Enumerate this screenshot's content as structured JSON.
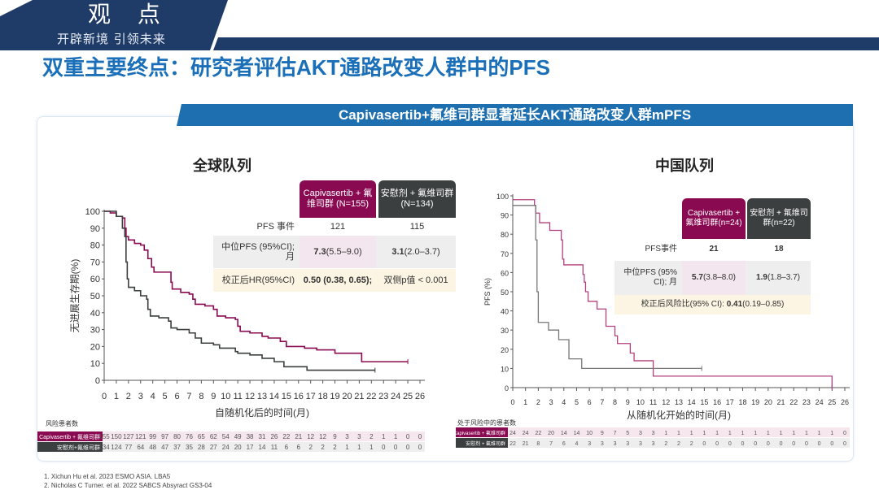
{
  "header": {
    "title": "观 点",
    "slogan": "开辟新境 引领未来"
  },
  "page_title": "双重主要终点：研究者评估AKT通路改变人群中的PFS",
  "banner": "Capivasertib+氟维司群显著延长AKT通路改变人群mPFS",
  "colors": {
    "capi": "#8a0a52",
    "placebo": "#3b3f3f",
    "china_capi": "#b3407e",
    "china_placebo": "#777777",
    "title": "#1a6fb8",
    "banner": "#1e6fb0"
  },
  "global": {
    "subtitle": "全球队列",
    "table": {
      "col1": "Capivasertib + 氟维司群 (N=155)",
      "col2": "安慰剂 + 氟维司群 (N=134)",
      "row1_label": "PFS 事件",
      "row1_v1": "121",
      "row1_v2": "115",
      "row2_label": "中位PFS (95%CI); 月",
      "row2_v1_bold": "7.3",
      "row2_v1": " (5.5–9.0)",
      "row2_v2_bold": "3.1",
      "row2_v2": " (2.0–3.7)",
      "row3_label": "校正后HR(95%CI)",
      "row3_v1": "0.50 (0.38, 0.65);",
      "row3_v2": "双侧p值 < 0.001"
    },
    "risk": {
      "title": "风险患者数",
      "label1": "Capivasertib + 氟维司群",
      "label2": "安慰剂+氟维司群",
      "capi": [
        155,
        150,
        127,
        121,
        99,
        97,
        80,
        76,
        65,
        62,
        54,
        49,
        38,
        31,
        26,
        22,
        21,
        12,
        12,
        9,
        3,
        3,
        2,
        1,
        1,
        0,
        0
      ],
      "placebo": [
        134,
        124,
        77,
        64,
        48,
        47,
        37,
        35,
        28,
        27,
        24,
        20,
        17,
        14,
        11,
        6,
        6,
        2,
        2,
        2,
        1,
        1,
        1,
        0,
        0,
        0,
        0
      ]
    }
  },
  "china": {
    "subtitle": "中国队列",
    "table": {
      "col1": "Capivasertib + 氟维司群(n=24)",
      "col2": "安慰剂 + 氟维司群(n=22)",
      "row1_label": "PFS事件",
      "row1_v1": "21",
      "row1_v2": "18",
      "row2_label": "中位PFS (95% CI); 月",
      "row2_v1_bold": "5.7",
      "row2_v1": " (3.8–8.0)",
      "row2_v2_bold": "1.9",
      "row2_v2": " (1.8–3.7)",
      "row3_label": "校正后风险比(95% CI):",
      "row3_bold": "0.41",
      "row3_v": " (0.19–0.85)"
    },
    "risk": {
      "title": "处于风险中的患者数",
      "label1": "Capivasertib + 氟维司群",
      "label2": "安慰剂 + 氟维司群",
      "capi": [
        24,
        24,
        22,
        20,
        14,
        14,
        10,
        9,
        7,
        5,
        3,
        3,
        1,
        1,
        1,
        1,
        1,
        1,
        1,
        1,
        1,
        1,
        1,
        1,
        1,
        1,
        0
      ],
      "placebo": [
        22,
        21,
        8,
        7,
        6,
        4,
        3,
        3,
        3,
        3,
        3,
        3,
        2,
        2,
        2,
        0,
        0,
        0,
        0,
        0,
        0,
        0,
        0,
        0,
        0,
        0,
        0
      ]
    }
  },
  "chart_data": [
    {
      "type": "line",
      "title": "全球队列",
      "xlabel": "自随机化后的时间(月)",
      "ylabel": "无进展生存期(%)",
      "xlim": [
        0,
        26
      ],
      "ylim": [
        0,
        100
      ],
      "xticks": [
        0,
        1,
        2,
        3,
        4,
        5,
        6,
        7,
        8,
        9,
        10,
        11,
        12,
        13,
        14,
        15,
        16,
        17,
        18,
        19,
        20,
        21,
        22,
        23,
        24,
        25,
        26
      ],
      "yticks": [
        0,
        10,
        20,
        30,
        40,
        50,
        60,
        70,
        80,
        90,
        100
      ],
      "series": [
        {
          "name": "Capivasertib + 氟维司群",
          "points": [
            [
              0,
              100
            ],
            [
              0.5,
              99
            ],
            [
              1,
              97
            ],
            [
              1.5,
              96
            ],
            [
              1.7,
              90
            ],
            [
              1.8,
              85
            ],
            [
              2,
              83
            ],
            [
              2.5,
              81
            ],
            [
              3,
              80
            ],
            [
              3.3,
              77
            ],
            [
              3.6,
              72
            ],
            [
              3.9,
              67
            ],
            [
              4.1,
              64
            ],
            [
              5.3,
              64
            ],
            [
              5.5,
              58
            ],
            [
              5.6,
              54
            ],
            [
              6.3,
              52
            ],
            [
              7,
              51
            ],
            [
              7.3,
              48
            ],
            [
              7.5,
              45
            ],
            [
              8.3,
              44
            ],
            [
              9,
              42
            ],
            [
              9.3,
              38
            ],
            [
              10,
              37
            ],
            [
              10.8,
              36
            ],
            [
              11,
              32
            ],
            [
              11.2,
              29
            ],
            [
              12,
              28
            ],
            [
              13,
              26
            ],
            [
              13.5,
              25
            ],
            [
              14.5,
              23
            ],
            [
              15,
              20
            ],
            [
              16.5,
              19
            ],
            [
              17.5,
              18
            ],
            [
              19,
              16
            ],
            [
              21.2,
              16
            ],
            [
              21.2,
              11
            ],
            [
              25,
              11
            ]
          ]
        },
        {
          "name": "安慰剂 + 氟维司群",
          "points": [
            [
              0,
              100
            ],
            [
              1,
              97
            ],
            [
              1.5,
              90
            ],
            [
              1.7,
              85
            ],
            [
              1.8,
              70
            ],
            [
              1.9,
              60
            ],
            [
              2,
              55
            ],
            [
              2.5,
              53
            ],
            [
              3,
              50
            ],
            [
              3.5,
              48
            ],
            [
              3.6,
              42
            ],
            [
              3.8,
              38
            ],
            [
              4.5,
              37
            ],
            [
              5.3,
              35
            ],
            [
              5.5,
              31
            ],
            [
              6,
              30
            ],
            [
              7,
              28
            ],
            [
              7.5,
              25
            ],
            [
              8,
              22
            ],
            [
              9,
              21
            ],
            [
              9.5,
              19
            ],
            [
              10.8,
              17
            ],
            [
              11,
              16
            ],
            [
              12,
              15
            ],
            [
              13,
              13
            ],
            [
              14,
              11
            ],
            [
              14.8,
              8
            ],
            [
              16.5,
              8
            ],
            [
              16.7,
              6
            ],
            [
              22.3,
              6
            ]
          ]
        }
      ]
    },
    {
      "type": "line",
      "title": "中国队列",
      "xlabel": "从随机化开始的时间(月)",
      "ylabel": "PFS (%)",
      "xlim": [
        0,
        26
      ],
      "ylim": [
        0,
        100
      ],
      "xticks": [
        0,
        1,
        2,
        3,
        4,
        5,
        6,
        7,
        8,
        9,
        10,
        11,
        12,
        13,
        14,
        15,
        16,
        17,
        18,
        19,
        20,
        21,
        22,
        23,
        24,
        25,
        26
      ],
      "yticks": [
        0,
        10,
        20,
        30,
        40,
        50,
        60,
        70,
        80,
        90,
        100
      ],
      "series": [
        {
          "name": "Capivasertib + 氟维司群",
          "points": [
            [
              0,
              98
            ],
            [
              1.7,
              98
            ],
            [
              1.7,
              95
            ],
            [
              1.8,
              91
            ],
            [
              2,
              91
            ],
            [
              2.1,
              86
            ],
            [
              2.9,
              86
            ],
            [
              2.9,
              82
            ],
            [
              3.7,
              82
            ],
            [
              3.8,
              77
            ],
            [
              3.9,
              67
            ],
            [
              4,
              64
            ],
            [
              5.4,
              64
            ],
            [
              5.5,
              59
            ],
            [
              5.6,
              55
            ],
            [
              5.7,
              50
            ],
            [
              5.9,
              45
            ],
            [
              6.5,
              45
            ],
            [
              6.6,
              41
            ],
            [
              7.2,
              41
            ],
            [
              7.3,
              36
            ],
            [
              7.3,
              32
            ],
            [
              8,
              32
            ],
            [
              8,
              27
            ],
            [
              8.2,
              27
            ],
            [
              8.2,
              23
            ],
            [
              9.1,
              23
            ],
            [
              9.2,
              18
            ],
            [
              9.4,
              18
            ],
            [
              9.5,
              14
            ],
            [
              11,
              14
            ],
            [
              11,
              6
            ],
            [
              25,
              6
            ],
            [
              25,
              0
            ]
          ]
        },
        {
          "name": "安慰剂 + 氟维司群",
          "points": [
            [
              0,
              95
            ],
            [
              1.6,
              95
            ],
            [
              1.8,
              77
            ],
            [
              1.9,
              50
            ],
            [
              2,
              34
            ],
            [
              2.8,
              34
            ],
            [
              2.8,
              30
            ],
            [
              3.6,
              30
            ],
            [
              3.6,
              25
            ],
            [
              4.4,
              25
            ],
            [
              4.4,
              15
            ],
            [
              5.4,
              15
            ],
            [
              5.4,
              10
            ],
            [
              14.8,
              10
            ]
          ]
        }
      ]
    }
  ],
  "footnotes": [
    "1.    Xichun Hu et al. 2023 ESMO ASIA. LBA5",
    "2.    Nicholas C Turner. et al. 2022 SABCS Absyract GS3-04"
  ]
}
